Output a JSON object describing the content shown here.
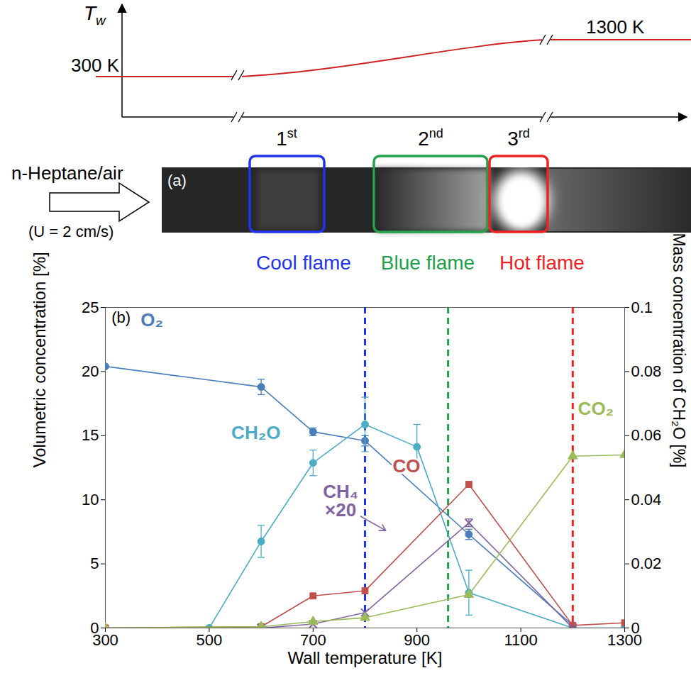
{
  "schematic": {
    "wall_temperature_axis": {
      "symbol": "T",
      "subscript": "w",
      "start_label": "300 K",
      "end_label": "1300 K"
    },
    "flame_numbers": [
      "1st",
      "2nd",
      "3rd"
    ],
    "inflow": {
      "label": "n-Heptane/air",
      "velocity": "(U = 2 cm/s)"
    },
    "panel_label": "(a)",
    "flames": [
      {
        "name": "Cool flame",
        "color": "#2233ee"
      },
      {
        "name": "Blue flame",
        "color": "#22a04a"
      },
      {
        "name": "Hot flame",
        "color": "#ee2222"
      }
    ]
  },
  "chart_data": {
    "type": "line",
    "panel_label": "(b)",
    "x_label": "Wall temperature [K]",
    "y_label": "Volumetric concentration [%]",
    "y2_label": "Mass concentration of CH₂O [%]",
    "xlim": [
      300,
      1300
    ],
    "xticks": [
      300,
      500,
      700,
      900,
      1100,
      1300
    ],
    "ylim": [
      0,
      25
    ],
    "yticks": [
      0,
      5,
      10,
      15,
      20,
      25
    ],
    "y2lim": [
      0,
      0.1
    ],
    "y2ticks": [
      0,
      0.02,
      0.04,
      0.06,
      0.08,
      0.1
    ],
    "reference_lines": [
      {
        "x": 800,
        "color": "#2233ee",
        "line_style": "dashed"
      },
      {
        "x": 960,
        "color": "#22a04a",
        "line_style": "dashed"
      },
      {
        "x": 1200,
        "color": "#ee2222",
        "line_style": "dashed"
      }
    ],
    "series": [
      {
        "name": "O₂",
        "color": "#4a7ebb",
        "marker": "circle",
        "line_style": "solid",
        "x": [
          300,
          600,
          700,
          800,
          1000,
          1200
        ],
        "values": [
          20.4,
          18.8,
          15.3,
          14.6,
          7.3,
          0.2
        ],
        "errors": [
          0,
          0.6,
          0.3,
          0.4,
          0.4,
          0
        ]
      },
      {
        "name": "CH₂O",
        "color": "#4bacc6",
        "marker": "circle",
        "line_style": "solid",
        "axis": "y2",
        "x": [
          300,
          500,
          600,
          700,
          800,
          900,
          1000,
          1200,
          1300
        ],
        "values": [
          0,
          0,
          0.027,
          0.0515,
          0.0635,
          0.0565,
          0.011,
          0,
          0
        ],
        "errors": [
          0,
          0,
          0.005,
          0.004,
          0.0085,
          0.007,
          0.007,
          0,
          0
        ]
      },
      {
        "name": "CO",
        "color": "#c0504d",
        "marker": "square",
        "line_style": "solid",
        "x": [
          300,
          600,
          700,
          800,
          1000,
          1200,
          1300
        ],
        "values": [
          0,
          0.1,
          2.5,
          2.9,
          11.2,
          0.2,
          0.4
        ]
      },
      {
        "name": "CH₄ ×20",
        "color": "#8064a2",
        "marker": "times",
        "line_style": "solid",
        "x": [
          600,
          700,
          800,
          1000,
          1200
        ],
        "values": [
          0,
          0.3,
          1.2,
          8.2,
          0
        ],
        "errors": [
          0,
          0,
          0,
          0.3,
          0
        ]
      },
      {
        "name": "CO₂",
        "color": "#9bbb59",
        "marker": "triangle",
        "line_style": "solid",
        "x": [
          300,
          600,
          700,
          800,
          1000,
          1200,
          1300
        ],
        "values": [
          0,
          0.1,
          0.5,
          0.8,
          2.6,
          13.4,
          13.5
        ]
      }
    ]
  }
}
